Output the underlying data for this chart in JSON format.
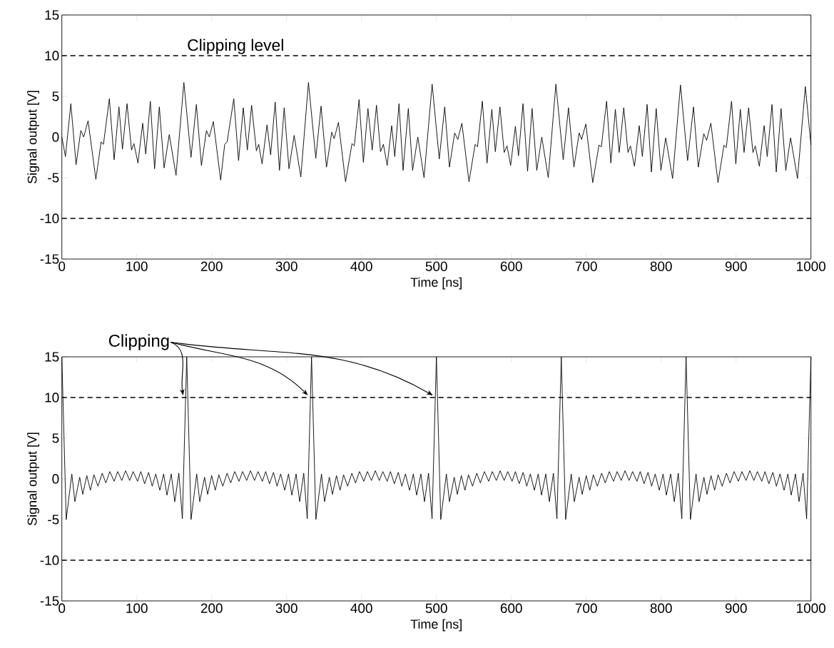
{
  "chart_data": [
    {
      "type": "line",
      "xlabel": "Time [ns]",
      "ylabel": "Signal output [V]",
      "xlim": [
        0,
        1000
      ],
      "ylim": [
        -15,
        15
      ],
      "xticks": [
        0,
        100,
        200,
        300,
        400,
        500,
        600,
        700,
        800,
        900,
        1000
      ],
      "yticks": [
        -15,
        -10,
        -5,
        0,
        5,
        10,
        15
      ],
      "ref_lines": [
        {
          "axis": "y",
          "value": 10,
          "label": "Clipping level",
          "color": "#000000",
          "line_style": "dashed"
        },
        {
          "axis": "y",
          "value": -10,
          "color": "#000000",
          "line_style": "dashed"
        }
      ],
      "series": [
        {
          "color": "#000000",
          "x": [
            0,
            4.8,
            12,
            19,
            25.3,
            29.2,
            35,
            45.4,
            52.4,
            55.5,
            63.4,
            69.8,
            76.2,
            80.9,
            87,
            93,
            96.2,
            101.6,
            107.9,
            112,
            118.1,
            123.8,
            130.1,
            136.5,
            143.4,
            152.4,
            162.9,
            172.4,
            179.6,
            186.3,
            193,
            196.8,
            202.2,
            212,
            217.4,
            220.6,
            229.5,
            235.9,
            242.2,
            247.6,
            253.3,
            259.7,
            262.8,
            267.3,
            273.9,
            278.7,
            284.8,
            290.5,
            296.8,
            303.2,
            310.1,
            319,
            329.2,
            339,
            346,
            353.3,
            360.3,
            363.5,
            369.2,
            378.7,
            387.3,
            390.4,
            396.8,
            402.5,
            408.6,
            414.3,
            420,
            425.4,
            429.2,
            434.3,
            440.3,
            444.4,
            450.1,
            455.5,
            462.5,
            468.2,
            475.2,
            483.5,
            494.3,
            503.8,
            511.1,
            517.4,
            524.4,
            528.6,
            534,
            543.5,
            551.7,
            554.9,
            561.3,
            567.6,
            574,
            578.7,
            584.8,
            590.5,
            594.3,
            599.1,
            605.4,
            609.6,
            615.6,
            621.7,
            627.7,
            634,
            640.7,
            649.3,
            659.5,
            669.3,
            676.3,
            683.6,
            690.6,
            693.8,
            699.5,
            708.7,
            717,
            720.2,
            727.2,
            732.9,
            738.9,
            744,
            750.1,
            755.8,
            759,
            764.4,
            770.8,
            774.9,
            781.3,
            787,
            793.4,
            799.7,
            806.1,
            815.3,
            825.8,
            835.3,
            843.2,
            849.6,
            856.9,
            860.7,
            866.4,
            875.9,
            883.9,
            887,
            894,
            899.7,
            905.7,
            910.7,
            916.8,
            922.5,
            925.7,
            931.1,
            937.5,
            941.6,
            948,
            953.7,
            960.1,
            966.4,
            972.8,
            982,
            992.5,
            1000
          ],
          "values": [
            0,
            -2.4,
            4.1,
            -3.4,
            0.8,
            0,
            2.0,
            -5.2,
            -0.6,
            -0.9,
            4.7,
            -2.8,
            3.7,
            -1.5,
            4.1,
            -1.6,
            -0.8,
            -3.2,
            1.7,
            -2.1,
            4.4,
            -3.9,
            3.7,
            -3.8,
            0.3,
            -4.7,
            6.7,
            -2.5,
            4.0,
            -3.5,
            0.8,
            0,
            1.9,
            -5.3,
            -0.9,
            -0.6,
            4.7,
            -2.9,
            3.6,
            -1.6,
            3.9,
            -1.7,
            -0.9,
            -3.3,
            1.5,
            -2.2,
            4.3,
            -4.1,
            3.6,
            -3.9,
            0.2,
            -4.9,
            6.7,
            -2.6,
            3.8,
            -3.7,
            0.6,
            -0.2,
            1.8,
            -5.5,
            -0.8,
            -1.1,
            4.6,
            -3.1,
            3.5,
            -1.6,
            3.9,
            -1.8,
            -0.9,
            -3.5,
            1.4,
            -2.4,
            4.1,
            -4.1,
            3.5,
            -4.1,
            0,
            -5.0,
            6.5,
            -2.7,
            3.7,
            -3.7,
            0.5,
            -0.3,
            1.7,
            -5.5,
            -0.9,
            -1.2,
            4.4,
            -3.2,
            3.4,
            -1.8,
            3.7,
            -1.9,
            -1.1,
            -3.5,
            1.3,
            -2.3,
            4.1,
            -4.2,
            3.5,
            -4.1,
            0,
            -5.0,
            6.5,
            -2.8,
            3.6,
            -3.7,
            0.5,
            -0.3,
            1.6,
            -5.6,
            -1.0,
            -1.2,
            4.4,
            -3.2,
            3.4,
            -1.9,
            3.6,
            -1.9,
            -1.1,
            -3.6,
            1.4,
            -2.4,
            4.0,
            -4.3,
            3.5,
            -4.1,
            -0.1,
            -5.1,
            6.4,
            -2.9,
            3.7,
            -3.7,
            0.4,
            -0.4,
            1.7,
            -5.6,
            -1.0,
            -1.3,
            4.4,
            -3.3,
            3.4,
            -1.9,
            3.6,
            -1.9,
            -1.1,
            -3.6,
            1.4,
            -2.4,
            4.0,
            -4.3,
            3.5,
            -4.1,
            -0.1,
            -5.1,
            6.2,
            -1.0
          ]
        }
      ]
    },
    {
      "type": "line",
      "xlabel": "Time [ns]",
      "ylabel": "Signal output [V]",
      "xlim": [
        0,
        1000
      ],
      "ylim": [
        -15,
        15
      ],
      "xticks": [
        0,
        100,
        200,
        300,
        400,
        500,
        600,
        700,
        800,
        900,
        1000
      ],
      "yticks": [
        -15,
        -10,
        -5,
        0,
        5,
        10,
        15
      ],
      "annotations": [
        {
          "text": "Clipping",
          "x": 166.7,
          "y": 10
        }
      ],
      "ref_lines": [
        {
          "axis": "y",
          "value": 10,
          "color": "#000000",
          "line_style": "dashed"
        },
        {
          "axis": "y",
          "value": -10,
          "color": "#000000",
          "line_style": "dashed"
        }
      ],
      "series": [
        {
          "color": "#000000",
          "x": [
            0,
            5.8,
            13.3,
            17.4,
            23.8,
            27.9,
            33.3,
            38.1,
            42.8,
            48.2,
            53.9,
            58.7,
            64.1,
            69.8,
            74.6,
            80,
            85.1,
            90.5,
            95.2,
            101,
            105.4,
            110.5,
            115.8,
            120.6,
            125.4,
            130.8,
            135.9,
            140.3,
            146,
            150.8,
            156.2,
            160.9,
            166.7,
            172.5,
            180,
            184.1,
            190.5,
            194.6,
            200,
            204.8,
            209.5,
            214.9,
            220.6,
            225.4,
            230.8,
            236.5,
            241.3,
            246.7,
            251.8,
            257.2,
            261.9,
            267.7,
            272.1,
            277.2,
            282.5,
            287.3,
            292.1,
            297.5,
            302.6,
            307,
            312.7,
            317.5,
            322.9,
            327.6,
            333.3,
            339.1,
            346.6,
            350.7,
            357.1,
            361.2,
            366.6,
            371.4,
            376.1,
            381.5,
            387.2,
            392,
            397.4,
            403.1,
            407.9,
            413.3,
            418.4,
            423.8,
            428.5,
            434.3,
            438.7,
            443.8,
            449.1,
            453.9,
            458.7,
            464.1,
            469.2,
            473.6,
            479.3,
            484.1,
            489.5,
            494.2,
            500,
            505.8,
            513.3,
            517.4,
            523.8,
            527.9,
            533.3,
            538.1,
            542.8,
            548.2,
            553.9,
            558.7,
            564.1,
            569.8,
            574.6,
            580,
            585.1,
            590.5,
            595.2,
            601,
            605.4,
            610.5,
            615.8,
            620.6,
            625.4,
            630.8,
            635.9,
            640.3,
            646,
            650.8,
            656.2,
            660.9,
            666.7,
            672.5,
            680,
            684.1,
            690.5,
            694.6,
            700,
            704.8,
            709.5,
            714.9,
            720.6,
            725.4,
            730.8,
            736.5,
            741.3,
            746.7,
            751.8,
            757.2,
            761.9,
            767.7,
            772.1,
            777.2,
            782.5,
            787.3,
            792.1,
            797.5,
            802.6,
            807,
            812.7,
            817.5,
            822.9,
            827.6,
            833.3,
            839.1,
            846.6,
            850.7,
            857.1,
            861.2,
            866.6,
            871.4,
            876.1,
            881.5,
            887.2,
            892,
            897.4,
            903.1,
            907.9,
            913.3,
            918.4,
            923.8,
            928.5,
            934.3,
            938.7,
            943.8,
            949.1,
            953.9,
            958.7,
            964.1,
            969.2,
            973.6,
            979.3,
            984.1,
            989.5,
            994.2,
            1000
          ],
          "values": [
            15,
            -5,
            0.6,
            -2.8,
            0.2,
            -1.9,
            0.4,
            -1.4,
            0.5,
            -0.9,
            0.7,
            -0.5,
            0.9,
            -0.3,
            0.9,
            -0.2,
            1.0,
            -0.2,
            0.9,
            -0.3,
            0.9,
            -0.6,
            0.8,
            -0.9,
            0.6,
            -1.4,
            0.6,
            -2.0,
            0.6,
            -2.8,
            0.7,
            -4.9,
            15,
            -5,
            0.6,
            -2.8,
            0.2,
            -1.9,
            0.4,
            -1.4,
            0.5,
            -0.9,
            0.7,
            -0.5,
            0.9,
            -0.3,
            0.9,
            -0.2,
            1.0,
            -0.2,
            0.9,
            -0.3,
            0.9,
            -0.6,
            0.8,
            -0.9,
            0.6,
            -1.4,
            0.6,
            -2.0,
            0.6,
            -2.8,
            0.7,
            -4.9,
            15,
            -5,
            0.6,
            -2.8,
            0.2,
            -1.9,
            0.4,
            -1.4,
            0.5,
            -0.9,
            0.7,
            -0.5,
            0.9,
            -0.3,
            0.9,
            -0.2,
            1.0,
            -0.2,
            0.9,
            -0.3,
            0.9,
            -0.6,
            0.8,
            -0.9,
            0.6,
            -1.4,
            0.6,
            -2.0,
            0.6,
            -2.8,
            0.7,
            -4.9,
            15,
            -5,
            0.6,
            -2.8,
            0.2,
            -1.9,
            0.4,
            -1.4,
            0.5,
            -0.9,
            0.7,
            -0.5,
            0.9,
            -0.3,
            0.9,
            -0.2,
            1.0,
            -0.2,
            0.9,
            -0.3,
            0.9,
            -0.6,
            0.8,
            -0.9,
            0.6,
            -1.4,
            0.6,
            -2.0,
            0.6,
            -2.8,
            0.7,
            -4.9,
            15,
            -5,
            0.6,
            -2.8,
            0.2,
            -1.9,
            0.4,
            -1.4,
            0.5,
            -0.9,
            0.7,
            -0.5,
            0.9,
            -0.3,
            0.9,
            -0.2,
            1.0,
            -0.2,
            0.9,
            -0.3,
            0.9,
            -0.6,
            0.8,
            -0.9,
            0.6,
            -1.4,
            0.6,
            -2.0,
            0.6,
            -2.8,
            0.7,
            -4.9,
            15,
            -5,
            0.6,
            -2.8,
            0.2,
            -1.9,
            0.4,
            -1.4,
            0.5,
            -0.9,
            0.7,
            -0.5,
            0.9,
            -0.3,
            0.9,
            -0.2,
            1.0,
            -0.2,
            0.9,
            -0.3,
            0.9,
            -0.6,
            0.8,
            -0.9,
            0.6,
            -1.4,
            0.6,
            -2.0,
            0.6,
            -2.8,
            0.7,
            -4.9,
            15
          ]
        }
      ]
    }
  ]
}
